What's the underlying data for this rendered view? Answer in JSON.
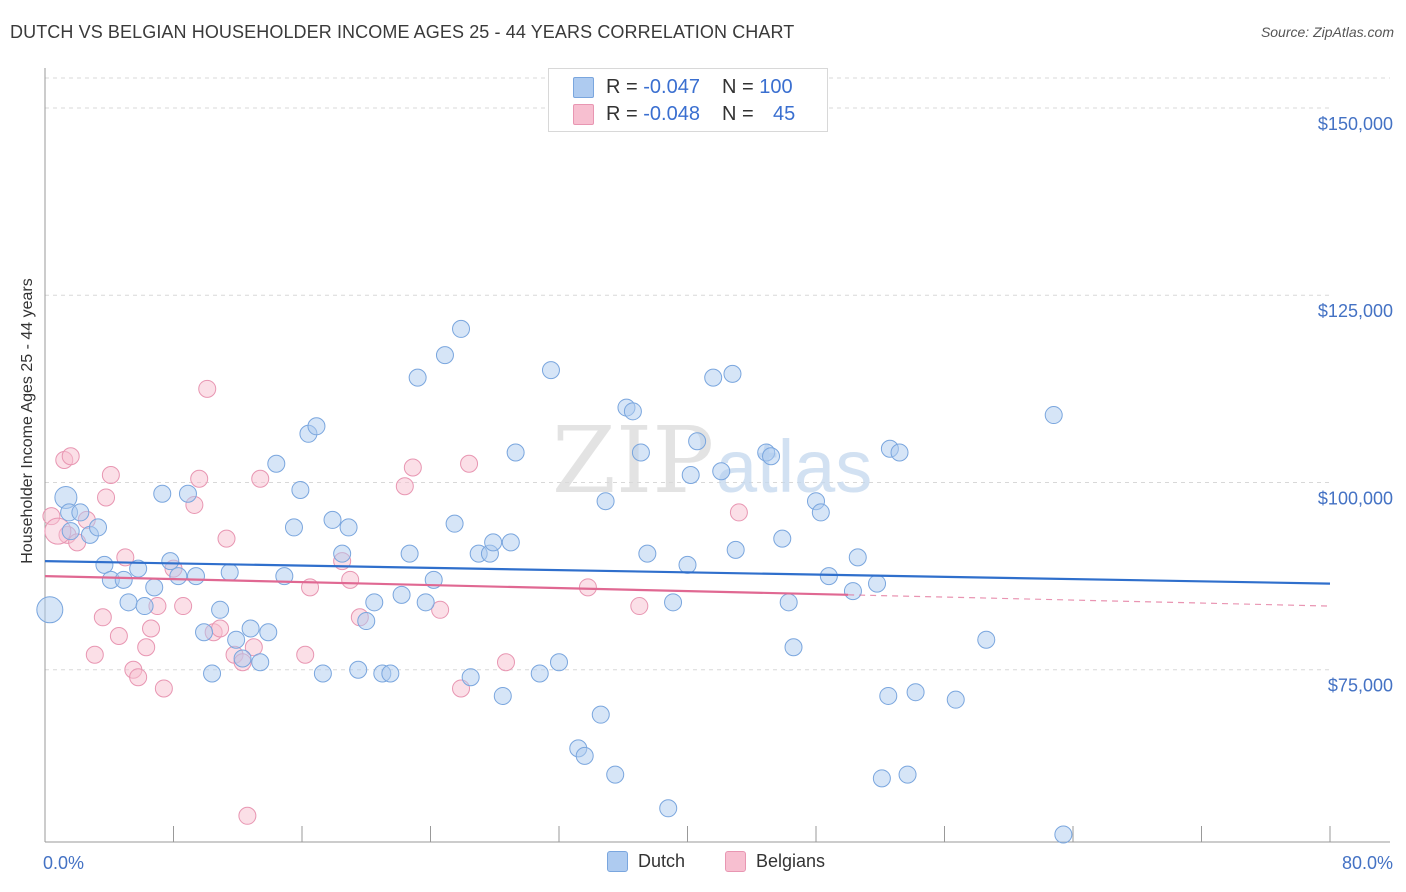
{
  "header": {
    "title": "DUTCH VS BELGIAN HOUSEHOLDER INCOME AGES 25 - 44 YEARS CORRELATION CHART",
    "source": "Source: ZipAtlas.com"
  },
  "watermark": {
    "zip": "ZIP",
    "atlas": "atlas"
  },
  "legend": {
    "dutch": {
      "r_label": "R = ",
      "r_value": "-0.047",
      "n_label": "N = ",
      "n_value": "100"
    },
    "belgians": {
      "r_label": "R = ",
      "r_value": "-0.048",
      "n_label": "N = ",
      "n_value": "45"
    }
  },
  "bottom_legend": {
    "dutch": "Dutch",
    "belgians": "Belgians"
  },
  "colors": {
    "dutch_fill": "#aecbf0",
    "dutch_stroke": "#7aa6de",
    "dutch_line": "#2f6fcc",
    "belgian_fill": "#f7bfd0",
    "belgian_stroke": "#e896b2",
    "belgian_line": "#e06892",
    "tick_text": "#4472c4",
    "grid": "#d8d8d8"
  },
  "chart_data": {
    "type": "scatter",
    "title": "DUTCH VS BELGIAN HOUSEHOLDER INCOME AGES 25 - 44 YEARS CORRELATION CHART",
    "xlabel": "",
    "ylabel": "Householder Income Ages 25 - 44 years",
    "xlim": [
      0,
      80
    ],
    "ylim": [
      52000,
      154000
    ],
    "x_tick_labels": [
      "0.0%",
      "80.0%"
    ],
    "y_ticks": [
      75000,
      100000,
      125000,
      150000
    ],
    "y_tick_labels": [
      "$75,000",
      "$100,000",
      "$125,000",
      "$150,000"
    ],
    "grid": "horizontal dashed",
    "legend_position": "top-center",
    "series": [
      {
        "name": "Dutch",
        "r": -0.047,
        "n": 100,
        "trend": {
          "x": [
            0,
            80
          ],
          "y": [
            89500,
            86500
          ]
        },
        "points": [
          [
            0.3,
            83000
          ],
          [
            1.3,
            98000
          ],
          [
            1.5,
            96000
          ],
          [
            1.6,
            93500
          ],
          [
            2.2,
            96000
          ],
          [
            2.8,
            93000
          ],
          [
            3.3,
            94000
          ],
          [
            3.7,
            89000
          ],
          [
            4.1,
            87000
          ],
          [
            4.9,
            87000
          ],
          [
            5.2,
            84000
          ],
          [
            5.8,
            88500
          ],
          [
            6.2,
            83500
          ],
          [
            6.8,
            86000
          ],
          [
            7.3,
            98500
          ],
          [
            7.8,
            89500
          ],
          [
            8.3,
            87500
          ],
          [
            8.9,
            98500
          ],
          [
            9.4,
            87500
          ],
          [
            9.9,
            80000
          ],
          [
            10.4,
            74500
          ],
          [
            10.9,
            83000
          ],
          [
            11.5,
            88000
          ],
          [
            11.9,
            79000
          ],
          [
            12.3,
            76500
          ],
          [
            12.8,
            80500
          ],
          [
            13.4,
            76000
          ],
          [
            13.9,
            80000
          ],
          [
            14.4,
            102500
          ],
          [
            14.9,
            87500
          ],
          [
            15.5,
            94000
          ],
          [
            15.9,
            99000
          ],
          [
            16.4,
            106500
          ],
          [
            16.9,
            107500
          ],
          [
            17.3,
            74500
          ],
          [
            17.9,
            95000
          ],
          [
            18.5,
            90500
          ],
          [
            18.9,
            94000
          ],
          [
            19.5,
            75000
          ],
          [
            20.0,
            81500
          ],
          [
            20.5,
            84000
          ],
          [
            21.0,
            74500
          ],
          [
            21.5,
            74500
          ],
          [
            22.2,
            85000
          ],
          [
            22.7,
            90500
          ],
          [
            23.2,
            114000
          ],
          [
            23.7,
            84000
          ],
          [
            24.2,
            87000
          ],
          [
            24.9,
            117000
          ],
          [
            25.5,
            94500
          ],
          [
            25.9,
            120500
          ],
          [
            26.5,
            74000
          ],
          [
            27.0,
            90500
          ],
          [
            27.7,
            90500
          ],
          [
            27.9,
            92000
          ],
          [
            28.5,
            71500
          ],
          [
            29.0,
            92000
          ],
          [
            29.3,
            104000
          ],
          [
            30.8,
            74500
          ],
          [
            31.5,
            115000
          ],
          [
            32.0,
            76000
          ],
          [
            33.2,
            64500
          ],
          [
            33.6,
            63500
          ],
          [
            34.6,
            69000
          ],
          [
            34.9,
            97500
          ],
          [
            35.5,
            61000
          ],
          [
            36.2,
            110000
          ],
          [
            36.6,
            109500
          ],
          [
            37.1,
            104000
          ],
          [
            37.5,
            90500
          ],
          [
            38.8,
            56500
          ],
          [
            39.1,
            84000
          ],
          [
            40.0,
            89000
          ],
          [
            40.2,
            101000
          ],
          [
            40.6,
            105500
          ],
          [
            41.6,
            114000
          ],
          [
            42.1,
            101500
          ],
          [
            42.8,
            114500
          ],
          [
            43.0,
            91000
          ],
          [
            44.9,
            104000
          ],
          [
            45.2,
            103500
          ],
          [
            45.9,
            92500
          ],
          [
            46.3,
            84000
          ],
          [
            46.6,
            78000
          ],
          [
            48.0,
            97500
          ],
          [
            48.3,
            96000
          ],
          [
            48.8,
            87500
          ],
          [
            50.3,
            85500
          ],
          [
            50.6,
            90000
          ],
          [
            51.8,
            86500
          ],
          [
            52.1,
            60500
          ],
          [
            52.6,
            104500
          ],
          [
            53.2,
            104000
          ],
          [
            53.7,
            61000
          ],
          [
            54.2,
            72000
          ],
          [
            56.7,
            71000
          ],
          [
            58.6,
            79000
          ],
          [
            62.8,
            109000
          ],
          [
            63.4,
            53000
          ],
          [
            52.5,
            71500
          ]
        ]
      },
      {
        "name": "Belgians",
        "r": -0.048,
        "n": 45,
        "trend": {
          "x": [
            0,
            50
          ],
          "y": [
            87500,
            85000
          ]
        },
        "trend_extension": {
          "x": [
            50,
            80
          ],
          "y": [
            85000,
            83500
          ]
        },
        "points": [
          [
            0.4,
            95500
          ],
          [
            1.2,
            103000
          ],
          [
            1.4,
            93000
          ],
          [
            1.6,
            103500
          ],
          [
            2.0,
            92000
          ],
          [
            2.6,
            95000
          ],
          [
            3.1,
            77000
          ],
          [
            3.6,
            82000
          ],
          [
            3.8,
            98000
          ],
          [
            4.1,
            101000
          ],
          [
            4.6,
            79500
          ],
          [
            5.0,
            90000
          ],
          [
            5.5,
            75000
          ],
          [
            5.8,
            74000
          ],
          [
            6.3,
            78000
          ],
          [
            6.6,
            80500
          ],
          [
            7.0,
            83500
          ],
          [
            7.4,
            72500
          ],
          [
            8.0,
            88500
          ],
          [
            8.6,
            83500
          ],
          [
            9.3,
            97000
          ],
          [
            9.6,
            100500
          ],
          [
            10.1,
            112500
          ],
          [
            10.5,
            80000
          ],
          [
            10.9,
            80500
          ],
          [
            11.3,
            92500
          ],
          [
            11.8,
            77000
          ],
          [
            12.3,
            76000
          ],
          [
            12.6,
            55500
          ],
          [
            13.0,
            78000
          ],
          [
            13.4,
            100500
          ],
          [
            16.2,
            77000
          ],
          [
            16.5,
            86000
          ],
          [
            18.5,
            89500
          ],
          [
            19.0,
            87000
          ],
          [
            19.6,
            82000
          ],
          [
            22.4,
            99500
          ],
          [
            22.9,
            102000
          ],
          [
            24.6,
            83000
          ],
          [
            25.9,
            72500
          ],
          [
            26.4,
            102500
          ],
          [
            28.7,
            76000
          ],
          [
            33.8,
            86000
          ],
          [
            37.0,
            83500
          ],
          [
            43.2,
            96000
          ]
        ]
      }
    ]
  }
}
